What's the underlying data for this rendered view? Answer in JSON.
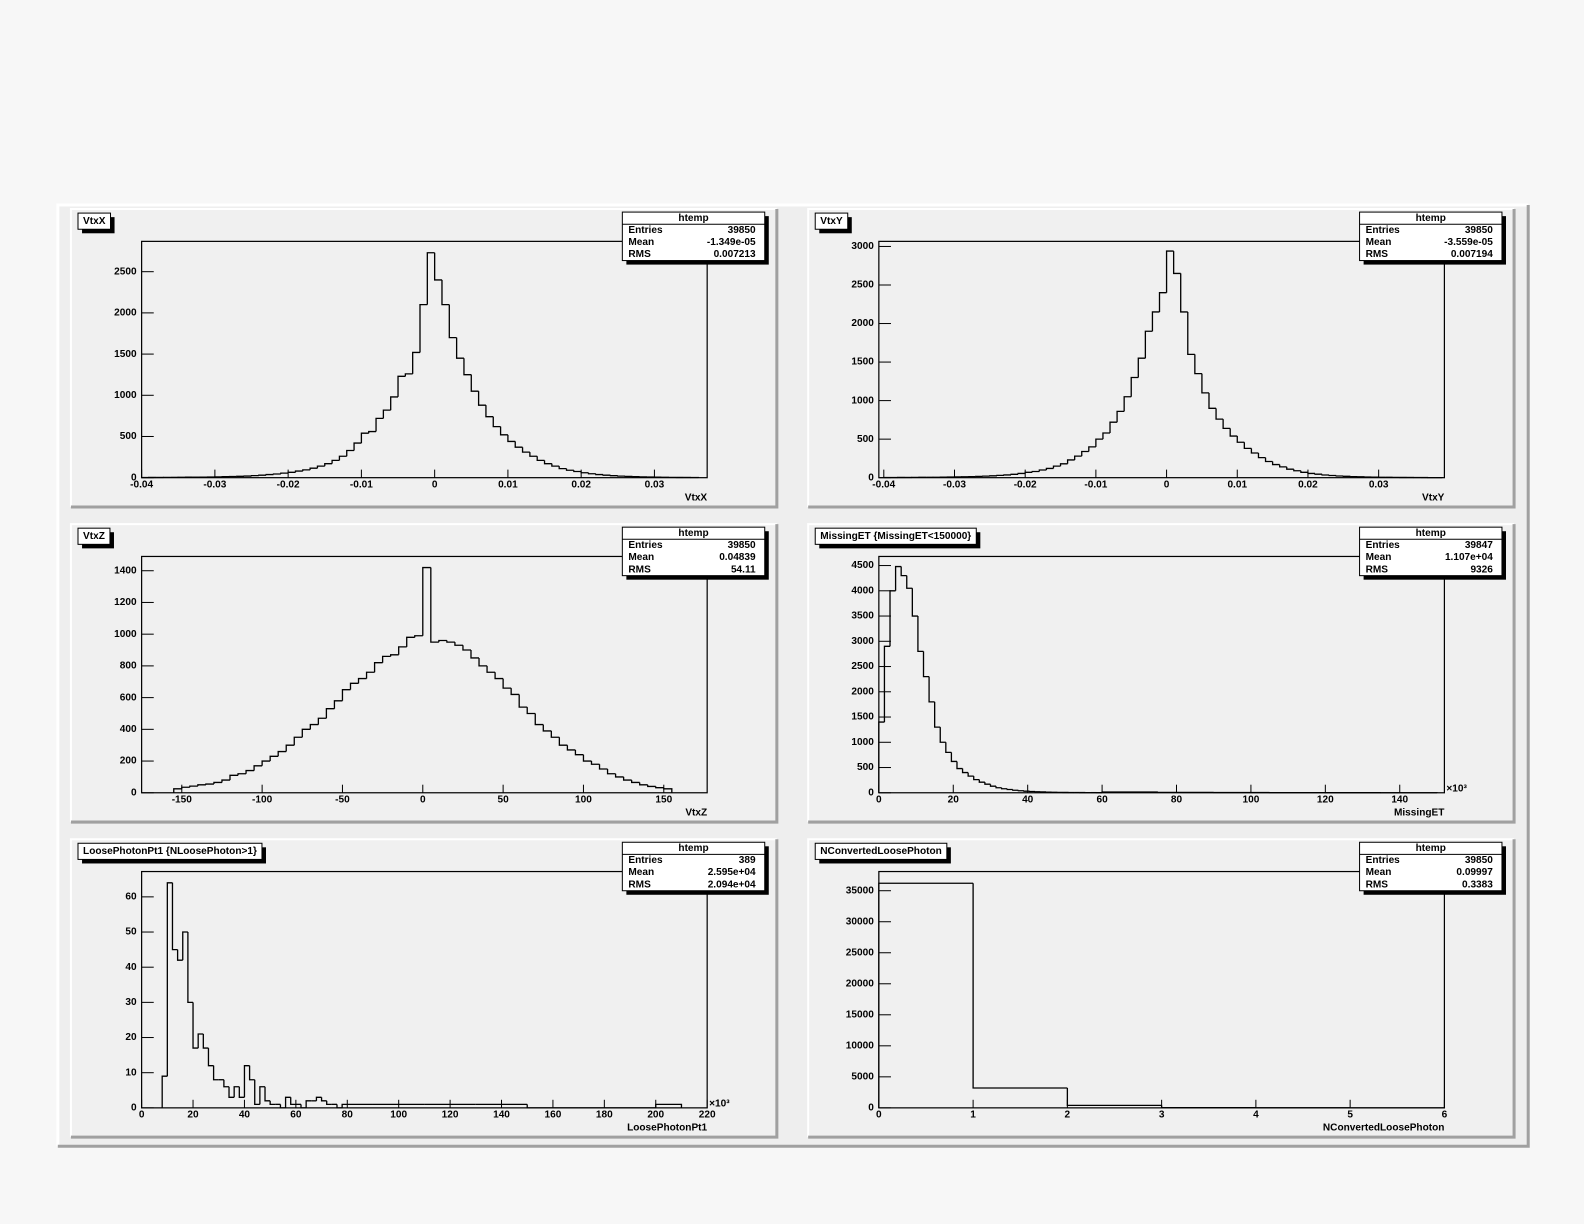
{
  "chart_data": [
    {
      "type": "histogram",
      "title": "VtxX",
      "xlabel": "VtxX",
      "color": "#000000",
      "stats": {
        "title": "htemp",
        "rows": [
          [
            "Entries",
            "39850"
          ],
          [
            "Mean",
            "-1.349e-05"
          ],
          [
            "RMS",
            "0.007213"
          ]
        ]
      },
      "xlim": [
        -0.04,
        0.0372
      ],
      "ylim": [
        0,
        2868
      ],
      "xticks": [
        -0.04,
        -0.03,
        -0.02,
        -0.01,
        0,
        0.01,
        0.02,
        0.03
      ],
      "yticks": [
        0,
        500,
        1000,
        1500,
        2000,
        2500
      ],
      "bins": [
        -0.04,
        -0.039,
        -0.038,
        -0.037,
        -0.036,
        -0.035,
        -0.034,
        -0.033,
        -0.032,
        -0.031,
        -0.03,
        -0.029,
        -0.028,
        -0.027,
        -0.026,
        -0.025,
        -0.024,
        -0.023,
        -0.022,
        -0.021,
        -0.02,
        -0.019,
        -0.018,
        -0.017,
        -0.016,
        -0.015,
        -0.014,
        -0.013,
        -0.012,
        -0.011,
        -0.01,
        -0.009,
        -0.008,
        -0.007,
        -0.006,
        -0.005,
        -0.004,
        -0.003,
        -0.002,
        -0.001,
        0,
        0.001,
        0.002,
        0.003,
        0.004,
        0.005,
        0.006,
        0.007,
        0.008,
        0.009,
        0.01,
        0.011,
        0.012,
        0.013,
        0.014,
        0.015,
        0.016,
        0.017,
        0.018,
        0.019,
        0.02,
        0.021,
        0.022,
        0.023,
        0.024,
        0.025,
        0.026,
        0.027,
        0.028,
        0.029,
        0.03,
        0.031,
        0.032,
        0.033,
        0.034,
        0.035,
        0.036
      ],
      "counts": [
        2,
        3,
        3,
        4,
        4,
        5,
        6,
        6,
        7,
        8,
        10,
        12,
        14,
        17,
        20,
        25,
        30,
        38,
        45,
        55,
        65,
        80,
        95,
        115,
        140,
        170,
        210,
        260,
        330,
        420,
        540,
        560,
        720,
        820,
        980,
        1230,
        1260,
        1520,
        2100,
        2730,
        2400,
        2100,
        1700,
        1450,
        1250,
        1050,
        880,
        740,
        620,
        520,
        440,
        370,
        310,
        260,
        210,
        170,
        140,
        110,
        90,
        75,
        60,
        48,
        38,
        30,
        24,
        19,
        15,
        12,
        10,
        8,
        6,
        5,
        4,
        3,
        3,
        2
      ]
    },
    {
      "type": "histogram",
      "title": "VtxY",
      "xlabel": "VtxY",
      "color": "#000000",
      "stats": {
        "title": "htemp",
        "rows": [
          [
            "Entries",
            "39850"
          ],
          [
            "Mean",
            "-3.559e-05"
          ],
          [
            "RMS",
            "0.007194"
          ]
        ]
      },
      "xlim": [
        -0.0407,
        0.0393
      ],
      "ylim": [
        0,
        3066
      ],
      "xticks": [
        -0.04,
        -0.03,
        -0.02,
        -0.01,
        0,
        0.01,
        0.02,
        0.03
      ],
      "yticks": [
        0,
        500,
        1000,
        1500,
        2000,
        2500,
        3000
      ],
      "bins": [
        -0.04,
        -0.039,
        -0.038,
        -0.037,
        -0.036,
        -0.035,
        -0.034,
        -0.033,
        -0.032,
        -0.031,
        -0.03,
        -0.029,
        -0.028,
        -0.027,
        -0.026,
        -0.025,
        -0.024,
        -0.023,
        -0.022,
        -0.021,
        -0.02,
        -0.019,
        -0.018,
        -0.017,
        -0.016,
        -0.015,
        -0.014,
        -0.013,
        -0.012,
        -0.011,
        -0.01,
        -0.009,
        -0.008,
        -0.007,
        -0.006,
        -0.005,
        -0.004,
        -0.003,
        -0.002,
        -0.001,
        0,
        0.001,
        0.002,
        0.003,
        0.004,
        0.005,
        0.006,
        0.007,
        0.008,
        0.009,
        0.01,
        0.011,
        0.012,
        0.013,
        0.014,
        0.015,
        0.016,
        0.017,
        0.018,
        0.019,
        0.02,
        0.021,
        0.022,
        0.023,
        0.024,
        0.025,
        0.026,
        0.027,
        0.028,
        0.029,
        0.03,
        0.031,
        0.032,
        0.033,
        0.034,
        0.035,
        0.036,
        0.037,
        0.038,
        0.039
      ],
      "counts": [
        2,
        2,
        3,
        3,
        4,
        5,
        5,
        6,
        7,
        8,
        10,
        12,
        14,
        17,
        20,
        24,
        30,
        36,
        44,
        55,
        70,
        80,
        100,
        120,
        150,
        180,
        230,
        280,
        340,
        400,
        500,
        580,
        720,
        860,
        1050,
        1300,
        1550,
        1900,
        2150,
        2400,
        2940,
        2650,
        2150,
        1600,
        1350,
        1100,
        900,
        760,
        640,
        540,
        460,
        380,
        320,
        260,
        210,
        170,
        140,
        110,
        90,
        70,
        55,
        45,
        35,
        28,
        22,
        18,
        14,
        11,
        9,
        7,
        6,
        5,
        4,
        3,
        3,
        2,
        2,
        1,
        1
      ]
    },
    {
      "type": "histogram",
      "title": "VtxZ",
      "xlabel": "VtxZ",
      "color": "#000000",
      "stats": {
        "title": "htemp",
        "rows": [
          [
            "Entries",
            "39850"
          ],
          [
            "Mean",
            "0.04839"
          ],
          [
            "RMS",
            "54.11"
          ]
        ]
      },
      "xlim": [
        -175,
        177
      ],
      "ylim": [
        0,
        1490
      ],
      "xticks": [
        -150,
        -100,
        -50,
        0,
        50,
        100,
        150
      ],
      "yticks": [
        0,
        200,
        400,
        600,
        800,
        1000,
        1200,
        1400
      ],
      "bins": [
        -155,
        -150,
        -145,
        -140,
        -135,
        -130,
        -125,
        -120,
        -115,
        -110,
        -105,
        -100,
        -95,
        -90,
        -85,
        -80,
        -75,
        -70,
        -65,
        -60,
        -55,
        -50,
        -45,
        -40,
        -35,
        -30,
        -25,
        -20,
        -15,
        -10,
        -5,
        0,
        5,
        10,
        15,
        20,
        25,
        30,
        35,
        40,
        45,
        50,
        55,
        60,
        65,
        70,
        75,
        80,
        85,
        90,
        95,
        100,
        105,
        110,
        115,
        120,
        125,
        130,
        135,
        140,
        145,
        150,
        155
      ],
      "counts": [
        25,
        35,
        42,
        50,
        55,
        65,
        80,
        110,
        120,
        140,
        170,
        200,
        230,
        260,
        300,
        350,
        400,
        430,
        470,
        530,
        580,
        650,
        690,
        720,
        760,
        820,
        860,
        870,
        920,
        980,
        990,
        1420,
        950,
        960,
        950,
        930,
        900,
        850,
        800,
        760,
        720,
        660,
        620,
        540,
        500,
        430,
        390,
        350,
        300,
        270,
        240,
        200,
        180,
        150,
        120,
        100,
        80,
        65,
        50,
        40,
        32,
        25
      ]
    },
    {
      "type": "histogram",
      "title": "MissingET {MissingET<150000}",
      "xlabel": "MissingET",
      "x_multiplier": "×10³",
      "color": "#000000",
      "stats": {
        "title": "htemp",
        "rows": [
          [
            "Entries",
            "39847"
          ],
          [
            "Mean",
            "1.107e+04"
          ],
          [
            "RMS",
            "9326"
          ]
        ]
      },
      "xlim": [
        0,
        152
      ],
      "ylim": [
        0,
        4680
      ],
      "xticks": [
        0,
        20,
        40,
        60,
        80,
        100,
        120,
        140
      ],
      "yticks": [
        0,
        500,
        1000,
        1500,
        2000,
        2500,
        3000,
        3500,
        4000,
        4500
      ],
      "bins": [
        0,
        1.5,
        3,
        4.5,
        6,
        7.5,
        9,
        10.5,
        12,
        13.5,
        15,
        16.5,
        18,
        19.5,
        21,
        22.5,
        24,
        25.5,
        27,
        28.5,
        30,
        31.5,
        33,
        34.5,
        36,
        37.5,
        39,
        40.5,
        42,
        43.5,
        45,
        46.5,
        48,
        49.5,
        51,
        52.5,
        54,
        55.5,
        57,
        58.5,
        60,
        75,
        90,
        105,
        120,
        135,
        150
      ],
      "counts": [
        1400,
        2900,
        4000,
        4480,
        4300,
        4050,
        3500,
        2800,
        2300,
        1800,
        1300,
        1000,
        800,
        620,
        480,
        400,
        330,
        260,
        210,
        170,
        130,
        100,
        80,
        65,
        50,
        40,
        32,
        25,
        20,
        16,
        13,
        10,
        8,
        7,
        6,
        5,
        4,
        3,
        3,
        2,
        15,
        8,
        5,
        3,
        2,
        1
      ]
    },
    {
      "type": "histogram",
      "title": "LoosePhotonPt1 {NLoosePhoton>1}",
      "xlabel": "LoosePhotonPt1",
      "x_multiplier": "×10³",
      "color": "#000000",
      "stats": {
        "title": "htemp",
        "rows": [
          [
            "Entries",
            "389"
          ],
          [
            "Mean",
            "2.595e+04"
          ],
          [
            "RMS",
            "2.094e+04"
          ]
        ]
      },
      "xlim": [
        0,
        220
      ],
      "ylim": [
        0,
        67.2
      ],
      "xticks": [
        0,
        20,
        40,
        60,
        80,
        100,
        120,
        140,
        160,
        180,
        200,
        220
      ],
      "yticks": [
        0,
        10,
        20,
        30,
        40,
        50,
        60
      ],
      "bins": [
        8,
        10,
        12,
        14,
        16,
        18,
        20,
        22,
        24,
        26,
        28,
        30,
        32,
        34,
        36,
        38,
        40,
        42,
        44,
        46,
        48,
        50,
        52,
        54,
        56,
        58,
        60,
        62,
        64,
        66,
        68,
        70,
        72,
        74,
        76,
        78,
        80,
        90,
        100,
        110,
        120,
        130,
        140,
        150,
        160,
        170,
        180,
        190,
        200,
        210
      ],
      "counts": [
        9,
        64,
        45,
        42,
        50,
        30,
        17,
        21,
        17,
        12,
        8,
        8,
        6,
        3,
        6,
        3,
        12,
        8,
        1,
        6,
        2,
        1,
        1,
        0,
        3,
        1,
        1,
        0,
        2,
        2,
        3,
        2,
        1,
        1,
        0,
        1,
        1,
        1,
        1,
        1,
        1,
        1,
        1,
        0,
        0,
        0,
        0,
        0,
        1
      ]
    },
    {
      "type": "histogram",
      "title": "NConvertedLoosePhoton",
      "xlabel": "NConvertedLoosePhoton",
      "color": "#000000",
      "stats": {
        "title": "htemp",
        "rows": [
          [
            "Entries",
            "39850"
          ],
          [
            "Mean",
            "0.09997"
          ],
          [
            "RMS",
            "0.3383"
          ]
        ]
      },
      "xlim": [
        0,
        6
      ],
      "ylim": [
        0,
        38090
      ],
      "xticks": [
        0,
        1,
        2,
        3,
        4,
        5,
        6
      ],
      "yticks": [
        0,
        5000,
        10000,
        15000,
        20000,
        25000,
        30000,
        35000
      ],
      "bins": [
        0,
        1,
        2,
        3,
        4,
        5,
        6
      ],
      "counts": [
        36200,
        3200,
        400,
        40,
        5,
        1
      ]
    }
  ]
}
